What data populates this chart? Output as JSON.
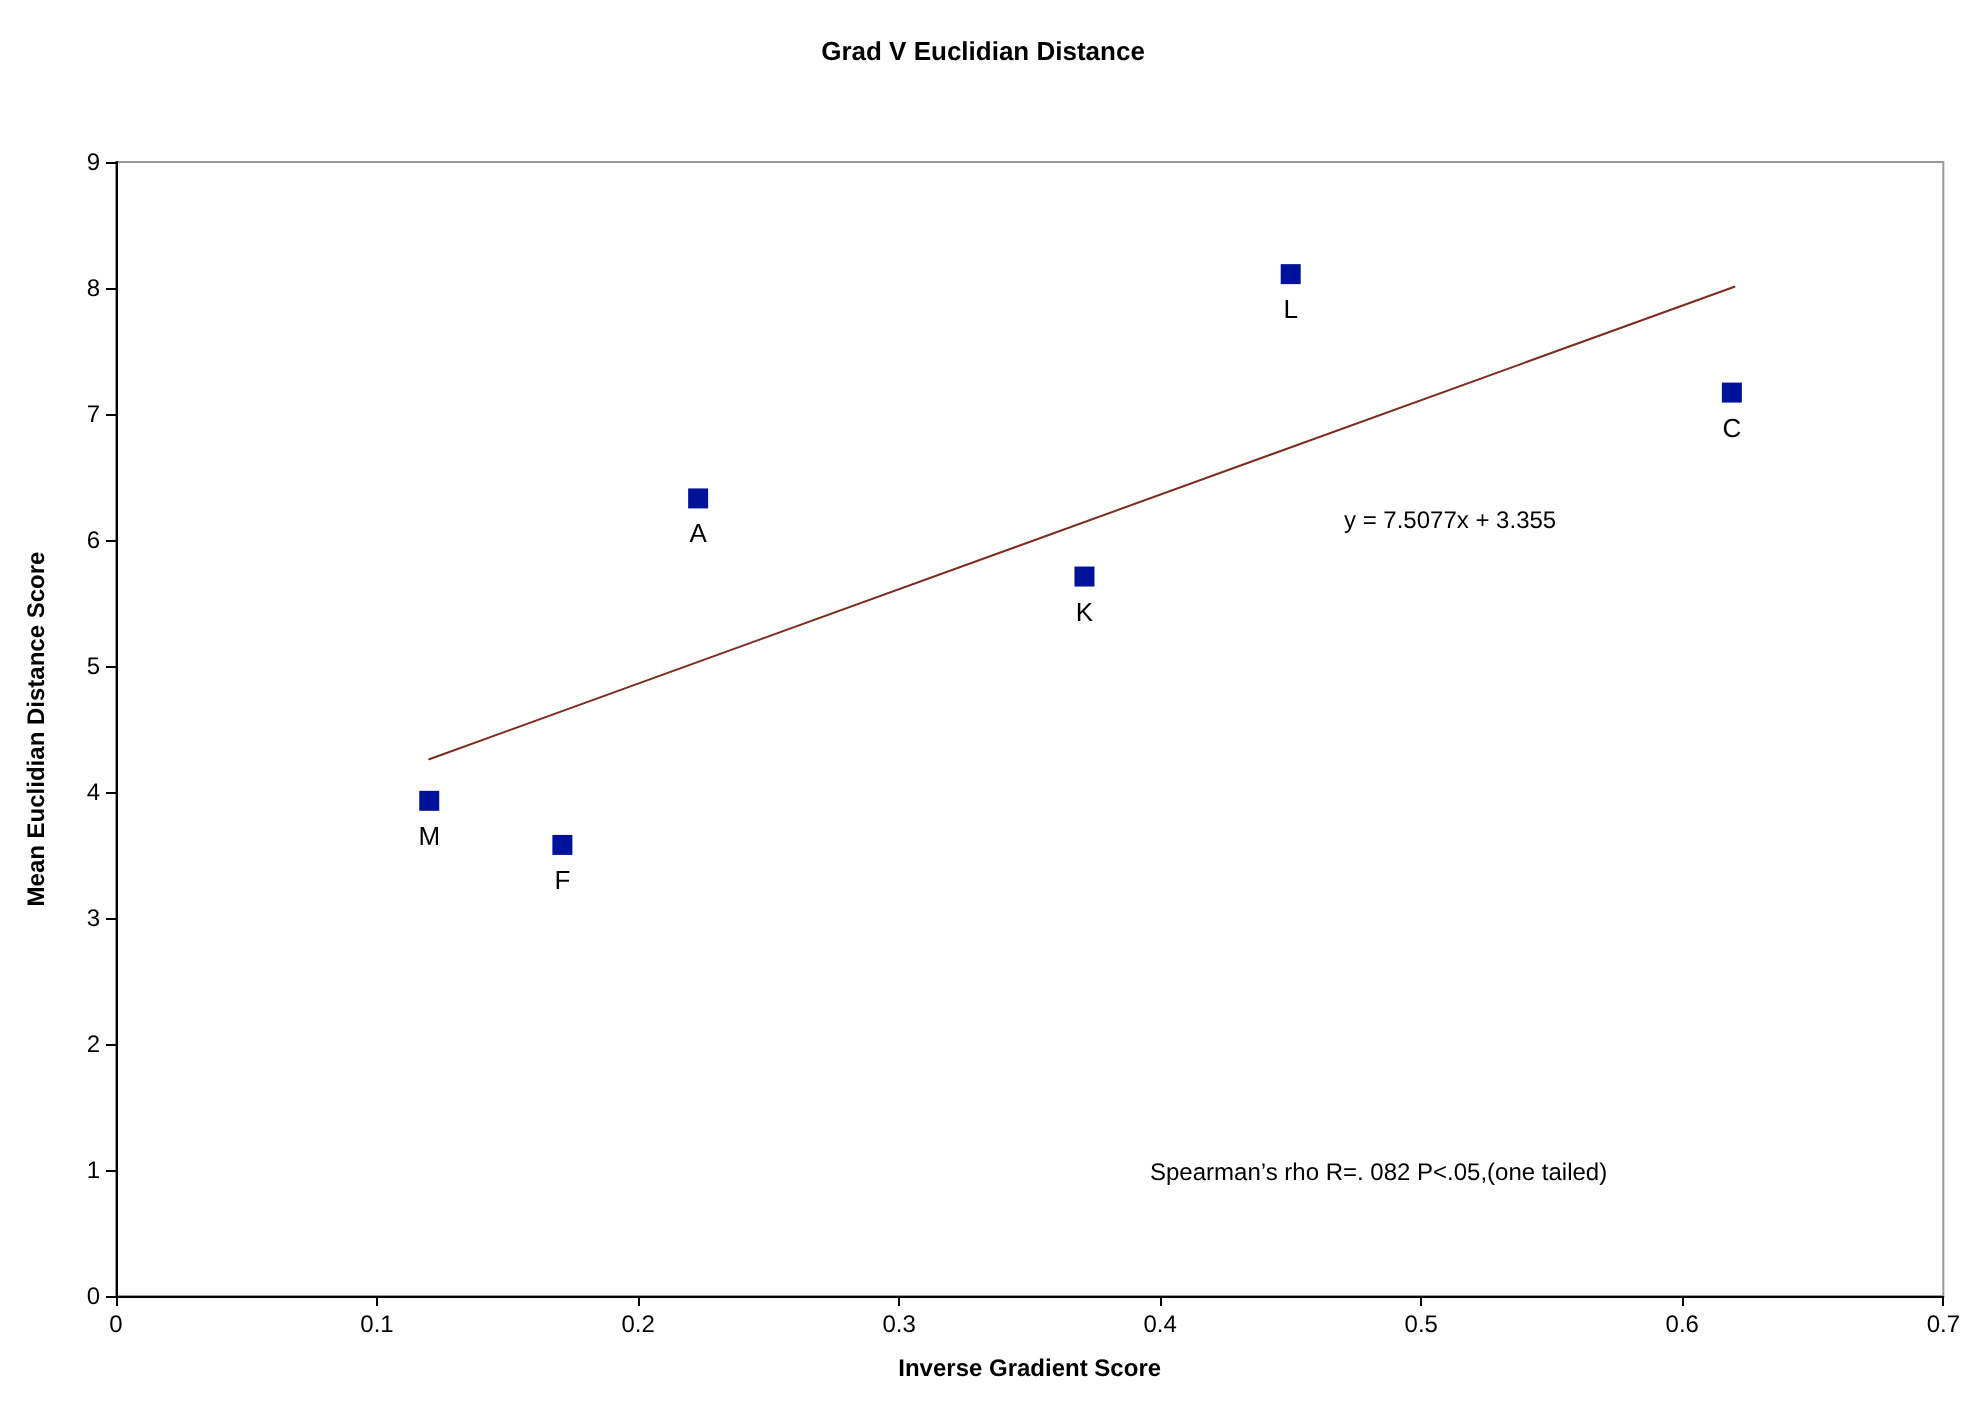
{
  "chart_data": {
    "type": "scatter",
    "title": "Grad V Euclidian Distance",
    "xlabel": "Inverse Gradient Score",
    "ylabel": "Mean Euclidian Distance Score",
    "x": [
      0.12,
      0.171,
      0.223,
      0.371,
      0.45,
      0.619
    ],
    "series": [
      {
        "color": "#00129a",
        "values": [
          3.93,
          3.58,
          6.33,
          5.71,
          8.11,
          7.17
        ],
        "value_labels": [
          "M",
          "F",
          "A",
          "K",
          "L",
          "C"
        ],
        "marker": "square"
      },
      {
        "type": "line",
        "color": "#7f2a1e",
        "x": [
          0.12,
          0.62
        ],
        "values": [
          4.26,
          8.01
        ],
        "marker": "none",
        "line_style": "solid"
      }
    ],
    "annotations": [
      "y = 7.5077x + 3.355",
      "Spearman’s rho R=. 082 P<.05,(one tailed)"
    ],
    "xlim": [
      0,
      0.7
    ],
    "xticks": [
      0,
      0.1,
      0.2,
      0.3,
      0.4,
      0.5,
      0.6,
      0.7
    ],
    "ylim": [
      0,
      9
    ],
    "yticks": [
      0,
      1,
      2,
      3,
      4,
      5,
      6,
      7,
      8,
      9
    ],
    "grid": false
  }
}
